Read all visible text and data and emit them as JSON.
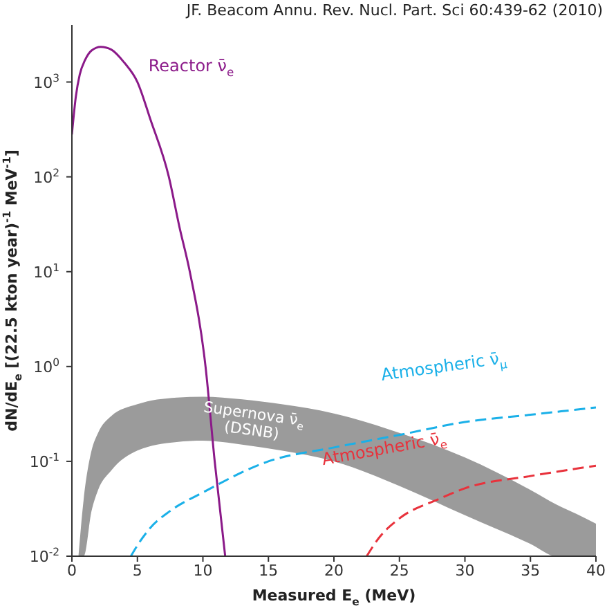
{
  "chart_data": {
    "type": "line",
    "xlabel": "Measured E$_{e}$ (MeV)",
    "ylabel": "dN/dE$_{e}$ [(22.5 kton year)$^{-1}$ MeV$^{-1}$]",
    "annotations": [
      "JF. Beacom Annu. Rev. Nucl. Part. Sci 60:439-62 (2010)"
    ],
    "log": "y",
    "xlim": [
      0,
      40
    ],
    "xticks": [
      0,
      5,
      10,
      15,
      20,
      25,
      30,
      35,
      40
    ],
    "ylim": [
      0.01,
      4000
    ],
    "yticks": [
      {
        "value": 0.01,
        "label": "10$^{-2}$"
      },
      {
        "value": 0.1,
        "label": "10$^{-1}$"
      },
      {
        "value": 1,
        "label": "10$^{0}$"
      },
      {
        "value": 10,
        "label": "10$^{1}$"
      },
      {
        "value": 100,
        "label": "10$^{2}$"
      },
      {
        "value": 1000,
        "label": "10$^{3}$"
      }
    ],
    "grid": false,
    "legend": false,
    "marker": "none",
    "series": [
      {
        "name": "Supernova ν̄$_{e}$ (DSNB)",
        "type": "area",
        "color": "#9b9b9b",
        "x": [
          0.5,
          0.9,
          1.5,
          2,
          3,
          5,
          8,
          10,
          13,
          16,
          20,
          25,
          30,
          35,
          37,
          38.5,
          40
        ],
        "values": [
          null,
          null,
          null,
          null,
          null,
          null,
          null,
          null,
          null,
          null,
          null,
          null,
          null,
          null,
          null,
          null,
          null
        ],
        "lower": [
          0.01,
          0.01,
          0.03,
          0.05,
          0.08,
          0.13,
          0.16,
          0.165,
          0.15,
          0.13,
          0.1,
          0.055,
          0.027,
          0.0135,
          0.01,
          0.01,
          0.01
        ],
        "upper": [
          0.01,
          0.04,
          0.13,
          0.2,
          0.3,
          0.4,
          0.47,
          0.48,
          0.45,
          0.4,
          0.32,
          0.2,
          0.11,
          0.05,
          0.035,
          0.028,
          0.022
        ]
      },
      {
        "name": "Reactor ν̄$_{e}$",
        "color": "#8b1a89",
        "line_style": "solid",
        "x": [
          0,
          0.3,
          0.6,
          1,
          1.5,
          2.2,
          3,
          4,
          5,
          6,
          7.4,
          8.2,
          9,
          10.2,
          10.9,
          11.7
        ],
        "values": [
          280,
          700,
          1200,
          1700,
          2150,
          2350,
          2200,
          1600,
          1000,
          400,
          100,
          30,
          10,
          1,
          0.1,
          0.01
        ]
      },
      {
        "name": "Atmospheric ν̄$_{μ}$",
        "color": "#1ab0e8",
        "line_style": "dashed",
        "x": [
          4.5,
          5,
          6,
          7.5,
          10,
          15,
          20,
          25,
          30,
          35,
          40
        ],
        "values": [
          0.01,
          0.013,
          0.02,
          0.03,
          0.047,
          0.1,
          0.14,
          0.19,
          0.26,
          0.31,
          0.37
        ]
      },
      {
        "name": "Atmospheric ν̄$_{e}$",
        "color": "#e8323c",
        "line_style": "dashed",
        "x": [
          22.5,
          23.5,
          25,
          28,
          30,
          35,
          40
        ],
        "values": [
          0.01,
          0.016,
          0.025,
          0.04,
          0.052,
          0.07,
          0.09
        ]
      }
    ]
  }
}
